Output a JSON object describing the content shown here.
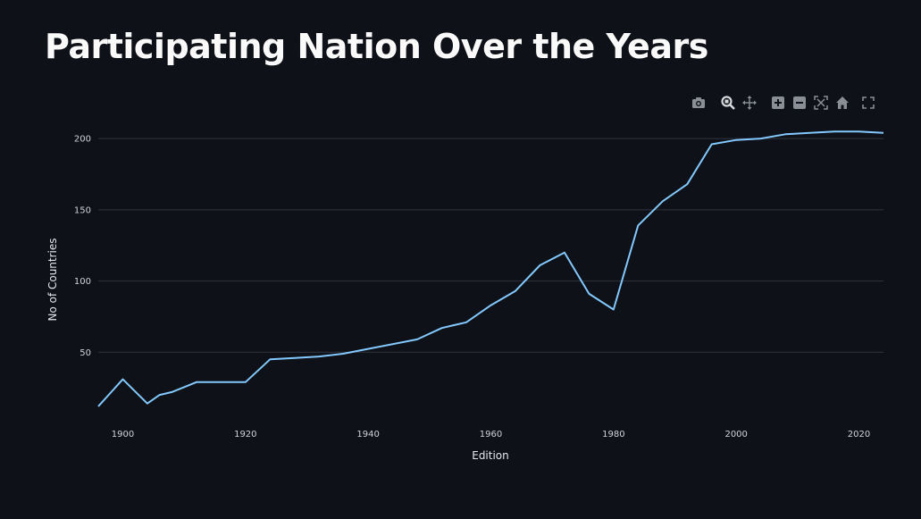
{
  "page": {
    "title": "Participating Nation Over the Years"
  },
  "modebar": {
    "buttons": [
      {
        "name": "camera-icon",
        "title": "Download plot as a png"
      },
      {
        "name": "zoom-icon",
        "title": "Zoom"
      },
      {
        "name": "pan-icon",
        "title": "Pan"
      },
      {
        "name": "zoom-in-icon",
        "title": "Zoom in"
      },
      {
        "name": "zoom-out-icon",
        "title": "Zoom out"
      },
      {
        "name": "autoscale-icon",
        "title": "Autoscale"
      },
      {
        "name": "home-icon",
        "title": "Reset axes"
      },
      {
        "name": "fullscreen-icon",
        "title": "Fullscreen"
      }
    ]
  },
  "chart_data": {
    "type": "line",
    "xlabel": "Edition",
    "ylabel": "No of Countries",
    "xlim": [
      1896,
      2024
    ],
    "ylim": [
      0,
      212
    ],
    "xticks": [
      1900,
      1920,
      1940,
      1960,
      1980,
      2000,
      2020
    ],
    "yticks": [
      50,
      100,
      150,
      200
    ],
    "grid": true,
    "line_color": "#83c9ff",
    "x": [
      1896,
      1900,
      1904,
      1906,
      1908,
      1912,
      1920,
      1924,
      1928,
      1932,
      1936,
      1948,
      1952,
      1956,
      1960,
      1964,
      1968,
      1972,
      1976,
      1980,
      1984,
      1988,
      1992,
      1996,
      2000,
      2004,
      2008,
      2012,
      2016,
      2020,
      2024
    ],
    "y": [
      12,
      31,
      14,
      20,
      22,
      29,
      29,
      45,
      46,
      47,
      49,
      59,
      67,
      71,
      83,
      93,
      111,
      120,
      91,
      80,
      139,
      156,
      168,
      196,
      199,
      200,
      203,
      204,
      205,
      205,
      204
    ]
  }
}
